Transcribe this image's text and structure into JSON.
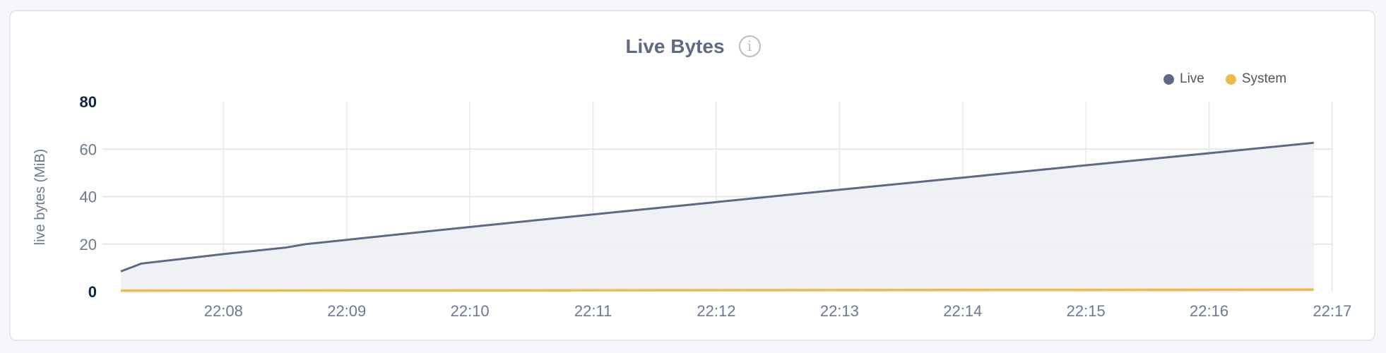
{
  "chart_data": {
    "type": "area",
    "title": "Live Bytes",
    "title_icon": "info-icon",
    "ylabel": "live bytes (MiB)",
    "xlabel": "",
    "ylim": [
      0,
      80
    ],
    "yticks": [
      "0",
      "20",
      "40",
      "60",
      "80"
    ],
    "xticks": [
      "22:08",
      "22:09",
      "22:10",
      "22:11",
      "22:12",
      "22:13",
      "22:14",
      "22:15",
      "22:16",
      "22:17"
    ],
    "xlim": [
      "22:07:10",
      "22:17:00"
    ],
    "grid": true,
    "legend_position": "top-right",
    "series": [
      {
        "name": "Live",
        "color": "#5c6a86",
        "fill": "#eeeff3",
        "x": [
          "22:07:10",
          "22:07:20",
          "22:08:00",
          "22:08:30",
          "22:08:40",
          "22:09:00",
          "22:10:00",
          "22:11:00",
          "22:12:00",
          "22:13:00",
          "22:14:00",
          "22:15:00",
          "22:16:00",
          "22:16:51"
        ],
        "values": [
          8.5,
          11.8,
          15.8,
          18.5,
          20,
          21.8,
          27.2,
          32.5,
          37.7,
          42.9,
          48,
          53.2,
          58.3,
          62.7
        ]
      },
      {
        "name": "System",
        "color": "#ecbd4b",
        "x": [
          "22:07:10",
          "22:16:51"
        ],
        "values": [
          0.4,
          0.8
        ]
      }
    ]
  }
}
